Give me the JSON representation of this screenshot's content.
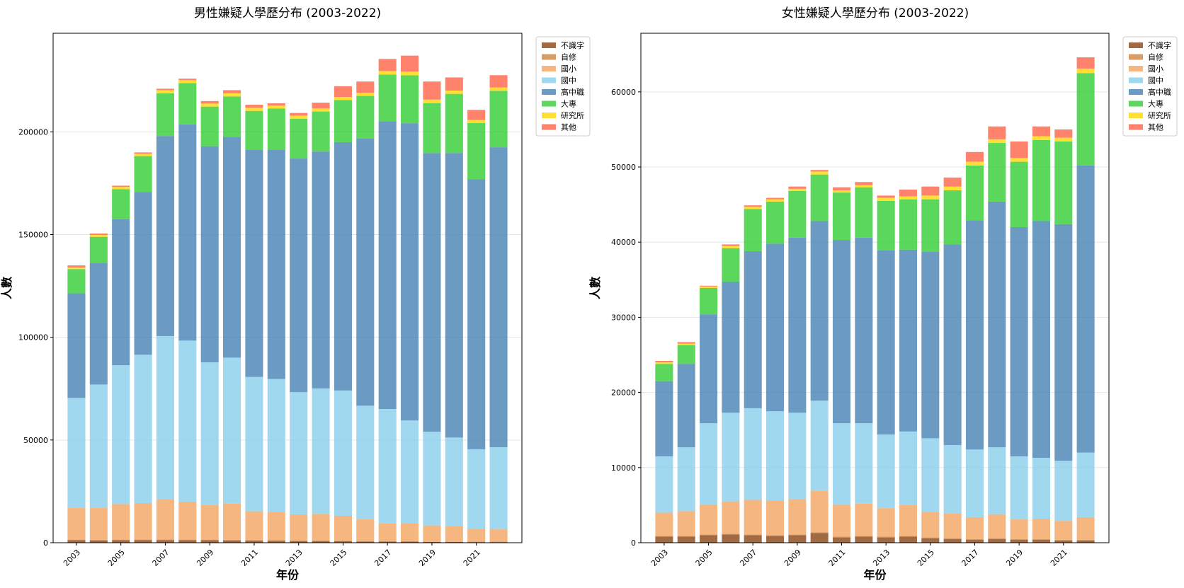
{
  "chart_data": [
    {
      "type": "bar",
      "stacked": true,
      "title": "男性嫌疑人學歷分布 (2003-2022)",
      "xlabel": "年份",
      "ylabel": "人數",
      "categories": [
        "2003",
        "2004",
        "2005",
        "2006",
        "2007",
        "2008",
        "2009",
        "2010",
        "2011",
        "2012",
        "2013",
        "2014",
        "2015",
        "2016",
        "2017",
        "2018",
        "2019",
        "2020",
        "2021",
        "2022"
      ],
      "xticks": [
        "2003",
        "2005",
        "2007",
        "2009",
        "2011",
        "2013",
        "2015",
        "2017",
        "2019",
        "2021"
      ],
      "ylim": [
        0,
        248000
      ],
      "yticks": [
        0,
        50000,
        100000,
        150000,
        200000
      ],
      "grid": "horizontal",
      "legend_position": "outside-top-right",
      "series": [
        {
          "name": "不識字",
          "color": "#8B4513",
          "values": [
            1200,
            1100,
            1200,
            1300,
            1300,
            1200,
            1200,
            1100,
            1000,
            900,
            800,
            800,
            700,
            600,
            600,
            500,
            400,
            400,
            300,
            300
          ]
        },
        {
          "name": "自修",
          "color": "#CD853F",
          "values": [
            300,
            300,
            300,
            300,
            300,
            300,
            300,
            300,
            300,
            300,
            300,
            300,
            200,
            200,
            200,
            200,
            200,
            200,
            200,
            200
          ]
        },
        {
          "name": "國小",
          "color": "#F4A460",
          "values": [
            15500,
            15600,
            17300,
            17700,
            19700,
            18500,
            16800,
            17600,
            14000,
            13800,
            12700,
            12900,
            12200,
            10700,
            8600,
            8600,
            7800,
            7600,
            6300,
            6000
          ]
        },
        {
          "name": "國中",
          "color": "#87CEEB",
          "values": [
            53500,
            60000,
            67600,
            72200,
            79300,
            78400,
            69500,
            71100,
            65400,
            64700,
            59500,
            61100,
            61000,
            55200,
            55700,
            50200,
            45600,
            43000,
            38700,
            40000
          ]
        },
        {
          "name": "高中職",
          "color": "#4682B4",
          "values": [
            50900,
            59200,
            71100,
            79200,
            97400,
            105200,
            105200,
            107500,
            110700,
            111700,
            113700,
            115300,
            120900,
            130000,
            140000,
            144700,
            135700,
            138500,
            131500,
            146000
          ]
        },
        {
          "name": "大專",
          "color": "#32CD32",
          "values": [
            11800,
            12700,
            14600,
            17500,
            20800,
            20100,
            19300,
            19600,
            18800,
            20000,
            19400,
            19500,
            20500,
            20800,
            22800,
            23300,
            24300,
            28800,
            27300,
            27500
          ]
        },
        {
          "name": "研究所",
          "color": "#FFD700",
          "values": [
            700,
            900,
            1100,
            1200,
            1500,
            1500,
            1500,
            1600,
            1500,
            1400,
            1500,
            1500,
            1500,
            1500,
            1700,
            1800,
            1700,
            1600,
            1500,
            1600
          ]
        },
        {
          "name": "其他",
          "color": "#FF6347",
          "values": [
            1100,
            700,
            600,
            600,
            700,
            700,
            1200,
            1500,
            1500,
            1100,
            1300,
            2800,
            5200,
            5500,
            5900,
            7800,
            8800,
            6400,
            4900,
            6000
          ]
        }
      ]
    },
    {
      "type": "bar",
      "stacked": true,
      "title": "女性嫌疑人學歷分布 (2003-2022)",
      "xlabel": "年份",
      "ylabel": "人數",
      "categories": [
        "2003",
        "2004",
        "2005",
        "2006",
        "2007",
        "2008",
        "2009",
        "2010",
        "2011",
        "2012",
        "2013",
        "2014",
        "2015",
        "2016",
        "2017",
        "2018",
        "2019",
        "2020",
        "2021",
        "2022"
      ],
      "xticks": [
        "2003",
        "2005",
        "2007",
        "2009",
        "2011",
        "2013",
        "2015",
        "2017",
        "2019",
        "2021"
      ],
      "ylim": [
        0,
        67800
      ],
      "yticks": [
        0,
        10000,
        20000,
        30000,
        40000,
        50000,
        60000
      ],
      "grid": "horizontal",
      "legend_position": "outside-top-right",
      "series": [
        {
          "name": "不識字",
          "color": "#8B4513",
          "values": [
            800,
            800,
            1000,
            1100,
            1000,
            900,
            1000,
            1300,
            700,
            800,
            700,
            800,
            600,
            500,
            400,
            500,
            400,
            400,
            300,
            300
          ]
        },
        {
          "name": "自修",
          "color": "#CD853F",
          "values": [
            100,
            100,
            100,
            100,
            100,
            100,
            100,
            100,
            100,
            100,
            100,
            100,
            100,
            100,
            100,
            100,
            100,
            100,
            100,
            100
          ]
        },
        {
          "name": "國小",
          "color": "#F4A460",
          "values": [
            3100,
            3300,
            4000,
            4300,
            4600,
            4600,
            4700,
            5500,
            4300,
            4300,
            3800,
            4100,
            3400,
            3300,
            2900,
            3200,
            2600,
            2700,
            2500,
            3000
          ]
        },
        {
          "name": "國中",
          "color": "#87CEEB",
          "values": [
            7500,
            8500,
            10800,
            11800,
            12200,
            11900,
            11500,
            12000,
            10800,
            10700,
            9800,
            9800,
            9800,
            9100,
            9000,
            8900,
            8400,
            8100,
            8000,
            8600
          ]
        },
        {
          "name": "高中職",
          "color": "#4682B4",
          "values": [
            10000,
            11100,
            14500,
            17400,
            20900,
            22300,
            23300,
            23900,
            24400,
            24700,
            24500,
            24200,
            24800,
            26700,
            30500,
            32700,
            30500,
            31500,
            31500,
            38200
          ]
        },
        {
          "name": "大專",
          "color": "#32CD32",
          "values": [
            2300,
            2500,
            3500,
            4500,
            5600,
            5600,
            6200,
            6200,
            6300,
            6700,
            6600,
            6700,
            7000,
            7200,
            7300,
            7800,
            8700,
            10800,
            11000,
            12300
          ]
        },
        {
          "name": "研究所",
          "color": "#FFD700",
          "values": [
            200,
            200,
            200,
            300,
            300,
            300,
            300,
            400,
            300,
            300,
            400,
            400,
            500,
            500,
            500,
            500,
            500,
            500,
            500,
            600
          ]
        },
        {
          "name": "其他",
          "color": "#FF6347",
          "values": [
            200,
            200,
            100,
            200,
            200,
            200,
            300,
            200,
            400,
            400,
            300,
            900,
            1200,
            1200,
            1300,
            1700,
            2200,
            1300,
            1100,
            1500
          ]
        }
      ]
    }
  ]
}
